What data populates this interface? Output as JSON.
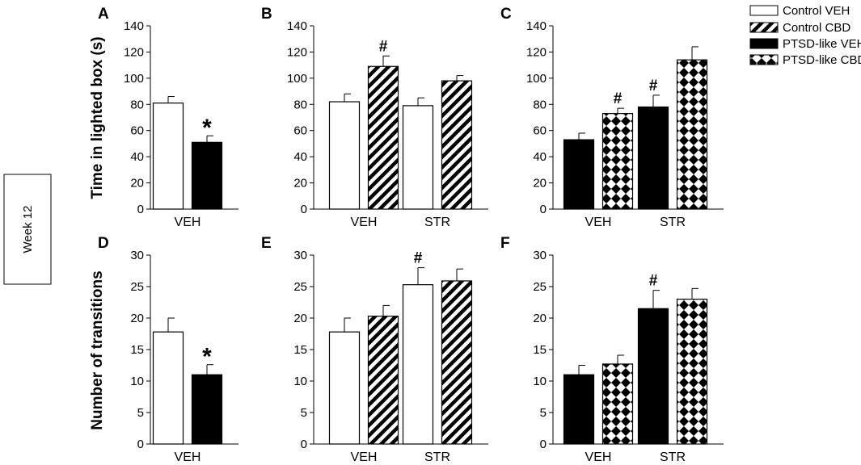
{
  "figure": {
    "row_labels": [
      "Time in lighted box (s)",
      "Number of transitions"
    ],
    "side_label": "Week 12"
  },
  "legend": [
    {
      "key": "control_veh",
      "label": "Control VEH"
    },
    {
      "key": "control_cbd",
      "label": "Control CBD"
    },
    {
      "key": "ptsd_veh",
      "label": "PTSD-like VEH"
    },
    {
      "key": "ptsd_cbd",
      "label": "PTSD-like CBD"
    }
  ],
  "chart_data": [
    {
      "panel": "A",
      "type": "bar",
      "ylabel": "Time in lighted box (s)",
      "ylim": [
        0,
        140
      ],
      "yticks": [
        0,
        20,
        40,
        60,
        80,
        100,
        120,
        140
      ],
      "groups": [
        {
          "category": "VEH",
          "bars": [
            {
              "series": "control_veh",
              "value": 81,
              "error": 5,
              "annotation": ""
            },
            {
              "series": "ptsd_veh",
              "value": 51,
              "error": 5,
              "annotation": "*"
            }
          ]
        }
      ]
    },
    {
      "panel": "B",
      "type": "bar",
      "ylabel": "",
      "ylim": [
        0,
        140
      ],
      "yticks": [
        0,
        20,
        40,
        60,
        80,
        100,
        120,
        140
      ],
      "groups": [
        {
          "category": "VEH",
          "bars": [
            {
              "series": "control_veh",
              "value": 82,
              "error": 6,
              "annotation": ""
            },
            {
              "series": "control_cbd",
              "value": 109,
              "error": 8,
              "annotation": "#"
            }
          ]
        },
        {
          "category": "STR",
          "bars": [
            {
              "series": "control_veh",
              "value": 79,
              "error": 6,
              "annotation": ""
            },
            {
              "series": "control_cbd",
              "value": 98,
              "error": 4,
              "annotation": ""
            }
          ]
        }
      ]
    },
    {
      "panel": "C",
      "type": "bar",
      "ylabel": "",
      "ylim": [
        0,
        140
      ],
      "yticks": [
        0,
        20,
        40,
        60,
        80,
        100,
        120,
        140
      ],
      "groups": [
        {
          "category": "VEH",
          "bars": [
            {
              "series": "ptsd_veh",
              "value": 53,
              "error": 5,
              "annotation": ""
            },
            {
              "series": "ptsd_cbd",
              "value": 73,
              "error": 4,
              "annotation": "#"
            }
          ]
        },
        {
          "category": "STR",
          "bars": [
            {
              "series": "ptsd_veh",
              "value": 78,
              "error": 9,
              "annotation": "#"
            },
            {
              "series": "ptsd_cbd",
              "value": 114,
              "error": 10,
              "annotation": ""
            }
          ]
        }
      ]
    },
    {
      "panel": "D",
      "type": "bar",
      "ylabel": "Number of transitions",
      "ylim": [
        0,
        30
      ],
      "yticks": [
        0,
        5,
        10,
        15,
        20,
        25,
        30
      ],
      "groups": [
        {
          "category": "VEH",
          "bars": [
            {
              "series": "control_veh",
              "value": 17.8,
              "error": 2.2,
              "annotation": ""
            },
            {
              "series": "ptsd_veh",
              "value": 11,
              "error": 1.6,
              "annotation": "*"
            }
          ]
        }
      ]
    },
    {
      "panel": "E",
      "type": "bar",
      "ylabel": "",
      "ylim": [
        0,
        30
      ],
      "yticks": [
        0,
        5,
        10,
        15,
        20,
        25,
        30
      ],
      "groups": [
        {
          "category": "VEH",
          "bars": [
            {
              "series": "control_veh",
              "value": 17.8,
              "error": 2.2,
              "annotation": ""
            },
            {
              "series": "control_cbd",
              "value": 20.3,
              "error": 1.7,
              "annotation": ""
            }
          ]
        },
        {
          "category": "STR",
          "bars": [
            {
              "series": "control_veh",
              "value": 25.3,
              "error": 2.7,
              "annotation": "#"
            },
            {
              "series": "control_cbd",
              "value": 25.9,
              "error": 1.9,
              "annotation": ""
            }
          ]
        }
      ]
    },
    {
      "panel": "F",
      "type": "bar",
      "ylabel": "",
      "ylim": [
        0,
        30
      ],
      "yticks": [
        0,
        5,
        10,
        15,
        20,
        25,
        30
      ],
      "groups": [
        {
          "category": "VEH",
          "bars": [
            {
              "series": "ptsd_veh",
              "value": 11,
              "error": 1.5,
              "annotation": ""
            },
            {
              "series": "ptsd_cbd",
              "value": 12.7,
              "error": 1.4,
              "annotation": ""
            }
          ]
        },
        {
          "category": "STR",
          "bars": [
            {
              "series": "ptsd_veh",
              "value": 21.5,
              "error": 2.9,
              "annotation": "#"
            },
            {
              "series": "ptsd_cbd",
              "value": 23,
              "error": 1.7,
              "annotation": ""
            }
          ]
        }
      ]
    }
  ]
}
